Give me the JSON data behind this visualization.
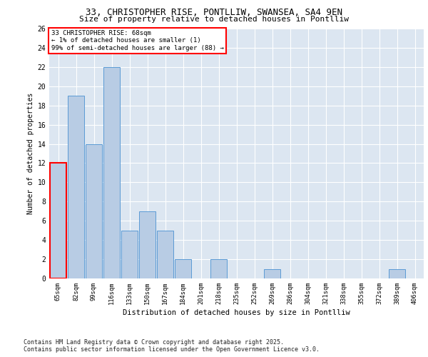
{
  "title1": "33, CHRISTOPHER RISE, PONTLLIW, SWANSEA, SA4 9EN",
  "title2": "Size of property relative to detached houses in Pontlliw",
  "xlabel": "Distribution of detached houses by size in Pontlliw",
  "ylabel": "Number of detached properties",
  "categories": [
    "65sqm",
    "82sqm",
    "99sqm",
    "116sqm",
    "133sqm",
    "150sqm",
    "167sqm",
    "184sqm",
    "201sqm",
    "218sqm",
    "235sqm",
    "252sqm",
    "269sqm",
    "286sqm",
    "304sqm",
    "321sqm",
    "338sqm",
    "355sqm",
    "372sqm",
    "389sqm",
    "406sqm"
  ],
  "values": [
    12,
    19,
    14,
    22,
    5,
    7,
    5,
    2,
    0,
    2,
    0,
    0,
    1,
    0,
    0,
    0,
    0,
    0,
    0,
    1,
    0
  ],
  "bar_color": "#b8cce4",
  "bar_edge_color": "#5b9bd5",
  "highlight_index": 0,
  "highlight_edge_color": "#ff0000",
  "annotation_text": "33 CHRISTOPHER RISE: 68sqm\n← 1% of detached houses are smaller (1)\n99% of semi-detached houses are larger (88) →",
  "ylim": [
    0,
    26
  ],
  "yticks": [
    0,
    2,
    4,
    6,
    8,
    10,
    12,
    14,
    16,
    18,
    20,
    22,
    24,
    26
  ],
  "bg_color": "#dce6f1",
  "footer1": "Contains HM Land Registry data © Crown copyright and database right 2025.",
  "footer2": "Contains public sector information licensed under the Open Government Licence v3.0."
}
